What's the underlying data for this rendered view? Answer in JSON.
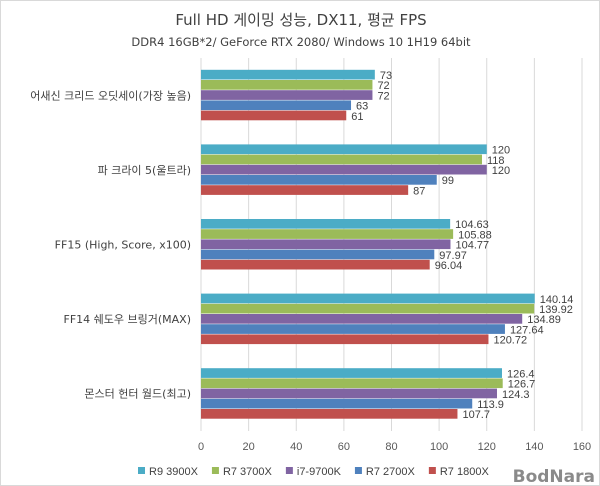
{
  "chart_data": {
    "type": "bar",
    "orientation": "horizontal",
    "title": "Full HD 게이밍 성능, DX11, 평균 FPS",
    "subtitle": "DDR4 16GB*2/ GeForce RTX 2080/ Windows 10 1H19 64bit",
    "categories": [
      "어새신 크리드 오딧세이(가장 높음)",
      "파 크라이 5(울트라)",
      "FF15 (High, Score, x100)",
      "FF14 쉐도우 브링거(MAX)",
      "몬스터 헌터 월드(최고)"
    ],
    "series": [
      {
        "name": "R9 3900X",
        "color": "#4bacc6",
        "values": [
          73,
          120,
          104.63,
          140.14,
          126.4
        ],
        "labels": [
          "73",
          "120",
          "104.63",
          "140.14",
          "126.4"
        ]
      },
      {
        "name": "R7 3700X",
        "color": "#9bbb59",
        "values": [
          72,
          118,
          105.88,
          139.92,
          126.7
        ],
        "labels": [
          "72",
          "118",
          "105.88",
          "139.92",
          "126.7"
        ]
      },
      {
        "name": "i7-9700K",
        "color": "#8064a2",
        "values": [
          72,
          120,
          104.77,
          134.89,
          124.3
        ],
        "labels": [
          "72",
          "120",
          "104.77",
          "134.89",
          "124.3"
        ]
      },
      {
        "name": "R7 2700X",
        "color": "#4f81bd",
        "values": [
          63,
          99,
          97.97,
          127.64,
          113.9
        ],
        "labels": [
          "63",
          "99",
          "97.97",
          "127.64",
          "113.9"
        ]
      },
      {
        "name": "R7 1800X",
        "color": "#c0504d",
        "values": [
          61,
          87,
          96.04,
          120.72,
          107.7
        ],
        "labels": [
          "61",
          "87",
          "96.04",
          "120.72",
          "107.7"
        ]
      }
    ],
    "xlim": [
      0,
      160
    ],
    "xticks": [
      "0",
      "20",
      "40",
      "60",
      "80",
      "100",
      "120",
      "140",
      "160"
    ],
    "grid": true,
    "legend": "bottom",
    "watermark": "BodNara"
  }
}
